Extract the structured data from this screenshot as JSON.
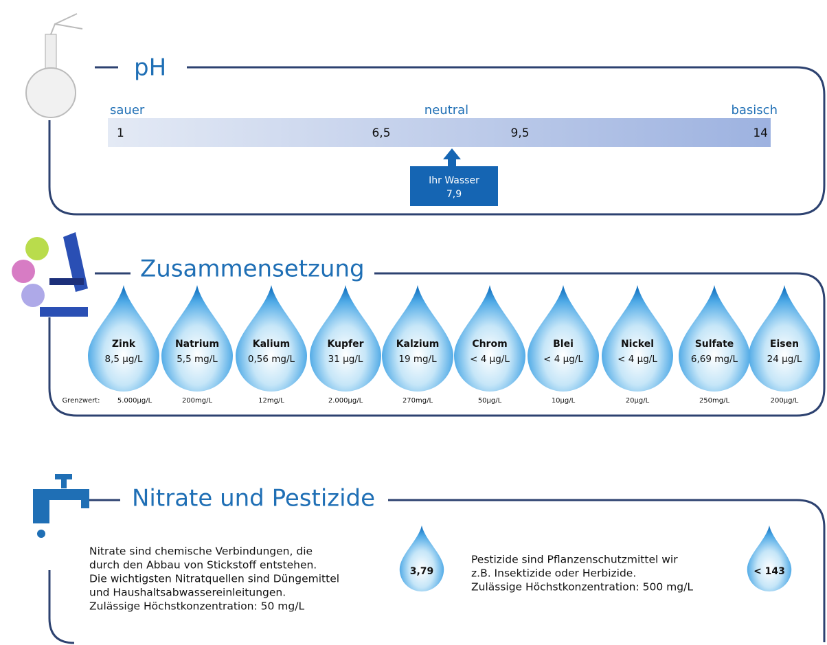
{
  "ph": {
    "title": "pH",
    "labels": {
      "acid": "sauer",
      "neutral": "neutral",
      "basic": "basisch"
    },
    "scale": [
      "1",
      "6,5",
      "9,5",
      "14"
    ],
    "marker": {
      "label": "Ihr Wasser",
      "value": "7,9"
    }
  },
  "composition": {
    "title": "Zusammensetzung",
    "limit_prefix": "Grenzwert:",
    "items": [
      {
        "name": "Zink",
        "value": "8,5 µg/L",
        "limit": "5.000µg/L"
      },
      {
        "name": "Natrium",
        "value": "5,5 mg/L",
        "limit": "200mg/L"
      },
      {
        "name": "Kalium",
        "value": "0,56 mg/L",
        "limit": "12mg/L"
      },
      {
        "name": "Kupfer",
        "value": "31 µg/L",
        "limit": "2.000µg/L"
      },
      {
        "name": "Kalzium",
        "value": "19 mg/L",
        "limit": "270mg/L"
      },
      {
        "name": "Chrom",
        "value": "< 4 µg/L",
        "limit": "50µg/L"
      },
      {
        "name": "Blei",
        "value": "< 4 µg/L",
        "limit": "10µg/L"
      },
      {
        "name": "Nickel",
        "value": "< 4 µg/L",
        "limit": "20µg/L"
      },
      {
        "name": "Sulfate",
        "value": "6,69 mg/L",
        "limit": "250mg/L"
      },
      {
        "name": "Eisen",
        "value": "24 µg/L",
        "limit": "200µg/L"
      }
    ]
  },
  "nitrates": {
    "title": "Nitrate und Pestizide",
    "nitrate": {
      "lines": [
        "Nitrate sind chemische Verbindungen, die",
        "durch den Abbau von Stickstoff entstehen.",
        "Die wichtigsten Nitratquellen sind Düngemittel",
        "und Haushaltsabwassereinleitungen.",
        "Zulässige Höchstkonzentration: 50 mg/L"
      ],
      "value": "3,79"
    },
    "pesticide": {
      "lines": [
        "Pestizide sind Pflanzenschutzmittel wir",
        "z.B. Insektizide oder Herbizide.",
        "Zulässige Höchstkonzentration: 500 mg/L"
      ],
      "value": "< 143"
    }
  }
}
